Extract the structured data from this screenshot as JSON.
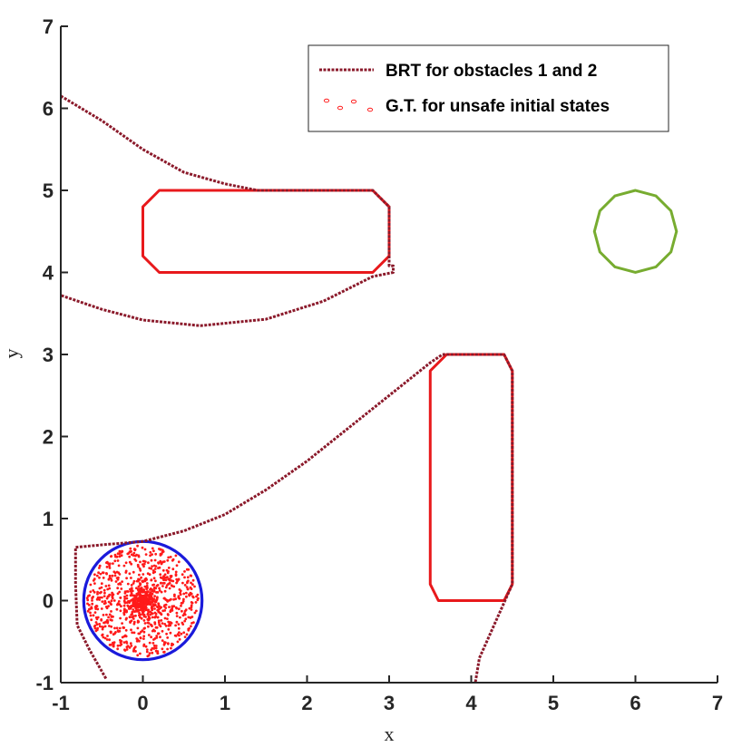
{
  "chart_data": {
    "type": "line",
    "title": "",
    "xlabel": "x",
    "ylabel": "y",
    "xlim": [
      -1,
      7
    ],
    "ylim": [
      -1,
      7
    ],
    "xticks": [
      "-1",
      "0",
      "1",
      "2",
      "3",
      "4",
      "5",
      "6",
      "7"
    ],
    "yticks": [
      "-1",
      "0",
      "1",
      "2",
      "3",
      "4",
      "5",
      "6",
      "7"
    ],
    "grid": false,
    "legend": {
      "placement": "top-right",
      "entries": [
        {
          "key": "brt",
          "label": "BRT for obstacles 1 and 2"
        },
        {
          "key": "gt",
          "label": "G.T. for unsafe initial states"
        }
      ]
    },
    "colors": {
      "brt": "#8b1a2b",
      "obstacle": "#e8191c",
      "initial_set": "#1a1adb",
      "goal": "#77ac30",
      "samples": "#ff1a1a",
      "axis": "#262626"
    },
    "brt_curves": [
      {
        "name": "BRT for obstacles 1 and 2",
        "points": [
          [
            -1.0,
            6.15
          ],
          [
            -0.5,
            5.85
          ],
          [
            0.0,
            5.5
          ],
          [
            0.5,
            5.22
          ],
          [
            1.0,
            5.08
          ],
          [
            1.4,
            5.0
          ],
          [
            2.8,
            5.0
          ],
          [
            3.0,
            4.8
          ],
          [
            3.0,
            4.08
          ],
          [
            3.05,
            4.08
          ],
          [
            3.05,
            4.0
          ],
          [
            2.8,
            3.95
          ],
          [
            2.2,
            3.65
          ],
          [
            1.5,
            3.43
          ],
          [
            0.7,
            3.35
          ],
          [
            0.0,
            3.42
          ],
          [
            -0.5,
            3.55
          ],
          [
            -1.0,
            3.72
          ]
        ]
      },
      {
        "points": [
          [
            -0.45,
            -0.95
          ],
          [
            -0.65,
            -0.6
          ],
          [
            -0.8,
            -0.3
          ],
          [
            -0.82,
            0.2
          ],
          [
            -0.82,
            0.65
          ],
          [
            -0.5,
            0.68
          ],
          [
            0.0,
            0.72
          ],
          [
            0.5,
            0.85
          ],
          [
            1.0,
            1.05
          ],
          [
            1.5,
            1.35
          ],
          [
            2.0,
            1.7
          ],
          [
            2.5,
            2.1
          ],
          [
            3.0,
            2.5
          ],
          [
            3.5,
            2.9
          ],
          [
            3.65,
            3.0
          ],
          [
            4.4,
            3.0
          ],
          [
            4.5,
            2.8
          ],
          [
            4.5,
            0.2
          ],
          [
            4.1,
            -0.7
          ],
          [
            4.05,
            -1.0
          ]
        ]
      }
    ],
    "obstacles": [
      {
        "points": [
          [
            0.2,
            5.0
          ],
          [
            2.8,
            5.0
          ],
          [
            3.0,
            4.8
          ],
          [
            3.0,
            4.2
          ],
          [
            2.8,
            4.0
          ],
          [
            0.2,
            4.0
          ],
          [
            0.0,
            4.2
          ],
          [
            0.0,
            4.8
          ]
        ]
      },
      {
        "points": [
          [
            3.7,
            3.0
          ],
          [
            4.4,
            3.0
          ],
          [
            4.5,
            2.8
          ],
          [
            4.5,
            0.2
          ],
          [
            4.4,
            0.0
          ],
          [
            3.6,
            0.0
          ],
          [
            3.5,
            0.2
          ],
          [
            3.5,
            2.8
          ]
        ]
      }
    ],
    "initial_set": {
      "center": [
        0.0,
        0.0
      ],
      "radius": 0.72
    },
    "goal": {
      "center": [
        6.0,
        4.5
      ],
      "radius": 0.5,
      "sides": 12
    },
    "ground_truth_samples": {
      "center": [
        0.0,
        0.0
      ],
      "radius": 0.68,
      "count": 1100
    }
  }
}
